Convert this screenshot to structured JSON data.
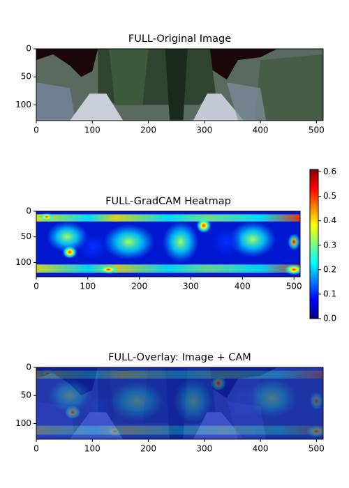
{
  "chart_data": [
    {
      "type": "image",
      "title": "FULL-Original Image",
      "xlim": [
        0,
        512
      ],
      "ylim": [
        128,
        0
      ],
      "xticks": [
        0,
        100,
        200,
        300,
        400,
        500
      ],
      "yticks": [
        0,
        50,
        100
      ]
    },
    {
      "type": "image",
      "title": "FULL-GradCAM Heatmap",
      "xlim": [
        0,
        512
      ],
      "ylim": [
        128,
        0
      ],
      "xticks": [
        0,
        100,
        200,
        300,
        400,
        500
      ],
      "yticks": [
        0,
        50,
        100
      ],
      "colorbar": {
        "lim": [
          0,
          0.61
        ],
        "ticks": [
          {
            "value": 0,
            "label": "0.0"
          },
          {
            "value": 0.1,
            "label": "0.1"
          },
          {
            "value": 0.2,
            "label": "0.2"
          },
          {
            "value": 0.3,
            "label": "0.3"
          },
          {
            "value": 0.4,
            "label": "0.4"
          },
          {
            "value": 0.5,
            "label": "0.5"
          },
          {
            "value": 0.6,
            "label": "0.6"
          }
        ]
      }
    },
    {
      "type": "image",
      "title": "FULL-Overlay: Image + CAM",
      "xlim": [
        0,
        512
      ],
      "ylim": [
        128,
        0
      ],
      "xticks": [
        0,
        100,
        200,
        300,
        400,
        500
      ],
      "yticks": [
        0,
        50,
        100
      ]
    }
  ]
}
